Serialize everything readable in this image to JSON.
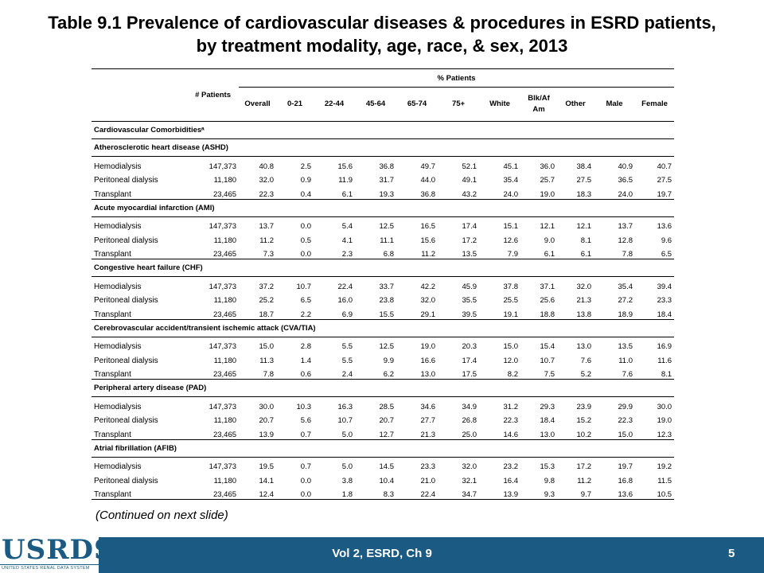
{
  "title": {
    "line1": "Table 9.1 Prevalence of cardiovascular diseases & procedures in ESRD patients,",
    "line2": "by treatment modality, age, race, & sex, 2013"
  },
  "table": {
    "patients_header": "# Patients",
    "pct_header": "% Patients",
    "columns": [
      "Overall",
      "0-21",
      "22-44",
      "45-64",
      "65-74",
      "75+",
      "White",
      "Blk/Af Am",
      "Other",
      "Male",
      "Female"
    ],
    "section_label": "Cardiovascular  Comorbiditiesᵃ",
    "groups": [
      {
        "name": "Atherosclerotic heart disease (ASHD)",
        "rows": [
          {
            "label": "Hemodialysis",
            "n": "147,373",
            "values": [
              "40.8",
              "2.5",
              "15.6",
              "36.8",
              "49.7",
              "52.1",
              "45.1",
              "36.0",
              "38.4",
              "40.9",
              "40.7"
            ]
          },
          {
            "label": "Peritoneal dialysis",
            "n": "11,180",
            "values": [
              "32.0",
              "0.9",
              "11.9",
              "31.7",
              "44.0",
              "49.1",
              "35.4",
              "25.7",
              "27.5",
              "36.5",
              "27.5"
            ]
          },
          {
            "label": "Transplant",
            "n": "23,465",
            "values": [
              "22.3",
              "0.4",
              "6.1",
              "19.3",
              "36.8",
              "43.2",
              "24.0",
              "19.0",
              "18.3",
              "24.0",
              "19.7"
            ]
          }
        ]
      },
      {
        "name": "Acute myocardial infarction (AMI)",
        "rows": [
          {
            "label": "Hemodialysis",
            "n": "147,373",
            "values": [
              "13.7",
              "0.0",
              "5.4",
              "12.5",
              "16.5",
              "17.4",
              "15.1",
              "12.1",
              "12.1",
              "13.7",
              "13.6"
            ]
          },
          {
            "label": "Peritoneal dialysis",
            "n": "11,180",
            "values": [
              "11.2",
              "0.5",
              "4.1",
              "11.1",
              "15.6",
              "17.2",
              "12.6",
              "9.0",
              "8.1",
              "12.8",
              "9.6"
            ]
          },
          {
            "label": "Transplant",
            "n": "23,465",
            "values": [
              "7.3",
              "0.0",
              "2.3",
              "6.8",
              "11.2",
              "13.5",
              "7.9",
              "6.1",
              "6.1",
              "7.8",
              "6.5"
            ]
          }
        ]
      },
      {
        "name": "Congestive heart failure (CHF)",
        "rows": [
          {
            "label": "Hemodialysis",
            "n": "147,373",
            "values": [
              "37.2",
              "10.7",
              "22.4",
              "33.7",
              "42.2",
              "45.9",
              "37.8",
              "37.1",
              "32.0",
              "35.4",
              "39.4"
            ]
          },
          {
            "label": "Peritoneal dialysis",
            "n": "11,180",
            "values": [
              "25.2",
              "6.5",
              "16.0",
              "23.8",
              "32.0",
              "35.5",
              "25.5",
              "25.6",
              "21.3",
              "27.2",
              "23.3"
            ]
          },
          {
            "label": "Transplant",
            "n": "23,465",
            "values": [
              "18.7",
              "2.2",
              "6.9",
              "15.5",
              "29.1",
              "39.5",
              "19.1",
              "18.8",
              "13.8",
              "18.9",
              "18.4"
            ]
          }
        ]
      },
      {
        "name": "Cerebrovascular accident/transient ischemic attack (CVA/TIA)",
        "rows": [
          {
            "label": "Hemodialysis",
            "n": "147,373",
            "values": [
              "15.0",
              "2.8",
              "5.5",
              "12.5",
              "19.0",
              "20.3",
              "15.0",
              "15.4",
              "13.0",
              "13.5",
              "16.9"
            ]
          },
          {
            "label": "Peritoneal dialysis",
            "n": "11,180",
            "values": [
              "11.3",
              "1.4",
              "5.5",
              "9.9",
              "16.6",
              "17.4",
              "12.0",
              "10.7",
              "7.6",
              "11.0",
              "11.6"
            ]
          },
          {
            "label": "Transplant",
            "n": "23,465",
            "values": [
              "7.8",
              "0.6",
              "2.4",
              "6.2",
              "13.0",
              "17.5",
              "8.2",
              "7.5",
              "5.2",
              "7.6",
              "8.1"
            ]
          }
        ]
      },
      {
        "name": "Peripheral artery disease (PAD)",
        "rows": [
          {
            "label": "Hemodialysis",
            "n": "147,373",
            "values": [
              "30.0",
              "10.3",
              "16.3",
              "28.5",
              "34.6",
              "34.9",
              "31.2",
              "29.3",
              "23.9",
              "29.9",
              "30.0"
            ]
          },
          {
            "label": "Peritoneal dialysis",
            "n": "11,180",
            "values": [
              "20.7",
              "5.6",
              "10.7",
              "20.7",
              "27.7",
              "26.8",
              "22.3",
              "18.4",
              "15.2",
              "22.3",
              "19.0"
            ]
          },
          {
            "label": "Transplant",
            "n": "23,465",
            "values": [
              "13.9",
              "0.7",
              "5.0",
              "12.7",
              "21.3",
              "25.0",
              "14.6",
              "13.0",
              "10.2",
              "15.0",
              "12.3"
            ]
          }
        ]
      },
      {
        "name": "Atrial fibrillation (AFIB)",
        "rows": [
          {
            "label": "Hemodialysis",
            "n": "147,373",
            "values": [
              "19.5",
              "0.7",
              "5.0",
              "14.5",
              "23.3",
              "32.0",
              "23.2",
              "15.3",
              "17.2",
              "19.7",
              "19.2"
            ]
          },
          {
            "label": "Peritoneal dialysis",
            "n": "11,180",
            "values": [
              "14.1",
              "0.0",
              "3.8",
              "10.4",
              "21.0",
              "32.1",
              "16.4",
              "9.8",
              "11.2",
              "16.8",
              "11.5"
            ]
          },
          {
            "label": "Transplant",
            "n": "23,465",
            "values": [
              "12.4",
              "0.0",
              "1.8",
              "8.3",
              "22.4",
              "34.7",
              "13.9",
              "9.3",
              "9.7",
              "13.6",
              "10.5"
            ]
          }
        ]
      }
    ]
  },
  "continued_note": "(Continued on next slide)",
  "footer": {
    "label": "Vol 2, ESRD, Ch 9",
    "page": "5",
    "logo_text": "USRDS",
    "logo_subtitle": "UNITED STATES RENAL DATA SYSTEM",
    "bar_color": "#1b5b83"
  }
}
